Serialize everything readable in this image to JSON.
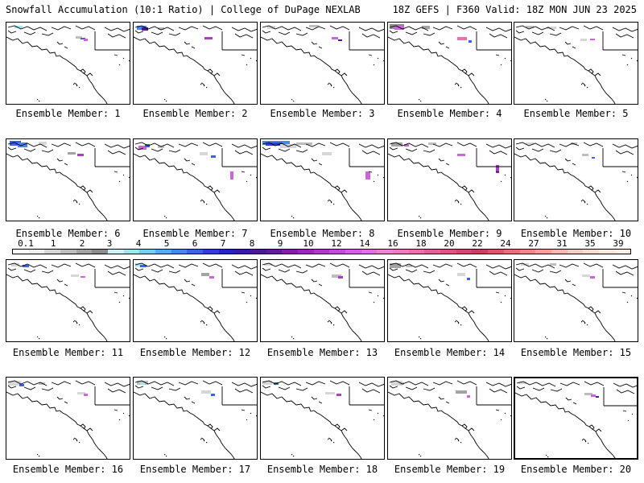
{
  "header": {
    "title": "Snowfall Accumulation (10:1 Ratio) | College of DuPage NEXLAB",
    "valid": "18Z GEFS | F360 Valid: 18Z MON JUN 23 2025"
  },
  "panels": [
    {
      "label": "Ensemble Member: 1"
    },
    {
      "label": "Ensemble Member: 2"
    },
    {
      "label": "Ensemble Member: 3"
    },
    {
      "label": "Ensemble Member: 4"
    },
    {
      "label": "Ensemble Member: 5"
    },
    {
      "label": "Ensemble Member: 6"
    },
    {
      "label": "Ensemble Member: 7"
    },
    {
      "label": "Ensemble Member: 8"
    },
    {
      "label": "Ensemble Member: 9"
    },
    {
      "label": "Ensemble Member: 10"
    },
    {
      "label": "Ensemble Member: 11"
    },
    {
      "label": "Ensemble Member: 12"
    },
    {
      "label": "Ensemble Member: 13"
    },
    {
      "label": "Ensemble Member: 14"
    },
    {
      "label": "Ensemble Member: 15"
    },
    {
      "label": "Ensemble Member: 16"
    },
    {
      "label": "Ensemble Member: 17"
    },
    {
      "label": "Ensemble Member: 18"
    },
    {
      "label": "Ensemble Member: 19"
    },
    {
      "label": "Ensemble Member: 20"
    }
  ],
  "legend": {
    "ticks": [
      "0.1",
      "1",
      "2",
      "3",
      "4",
      "5",
      "6",
      "7",
      "8",
      "9",
      "10",
      "12",
      "14",
      "16",
      "18",
      "20",
      "22",
      "24",
      "27",
      "31",
      "35",
      "39"
    ],
    "colors": [
      "#ffffff",
      "#eeeeee",
      "#d6d6d6",
      "#bdbdbd",
      "#a3a3a3",
      "#8c8c8c",
      "#c8f4f8",
      "#a0e6f0",
      "#7ccaf0",
      "#5ea8ee",
      "#4a86ea",
      "#3a62e6",
      "#2a3ee0",
      "#2222c8",
      "#3a18a8",
      "#50188c",
      "#661a90",
      "#7c22a2",
      "#922eb4",
      "#a83ec4",
      "#bc50d2",
      "#cc64dc",
      "#d876e0",
      "#e28ad8",
      "#ea7ec4",
      "#e870b0",
      "#e4609c",
      "#de5288",
      "#d64476",
      "#cc3c66",
      "#e0546a",
      "#ea6e76",
      "#f08a86",
      "#f4a29a",
      "#f6b8ac",
      "#f8ccbe",
      "#fadcce",
      "#fde8dc",
      "#fff0e6"
    ]
  }
}
